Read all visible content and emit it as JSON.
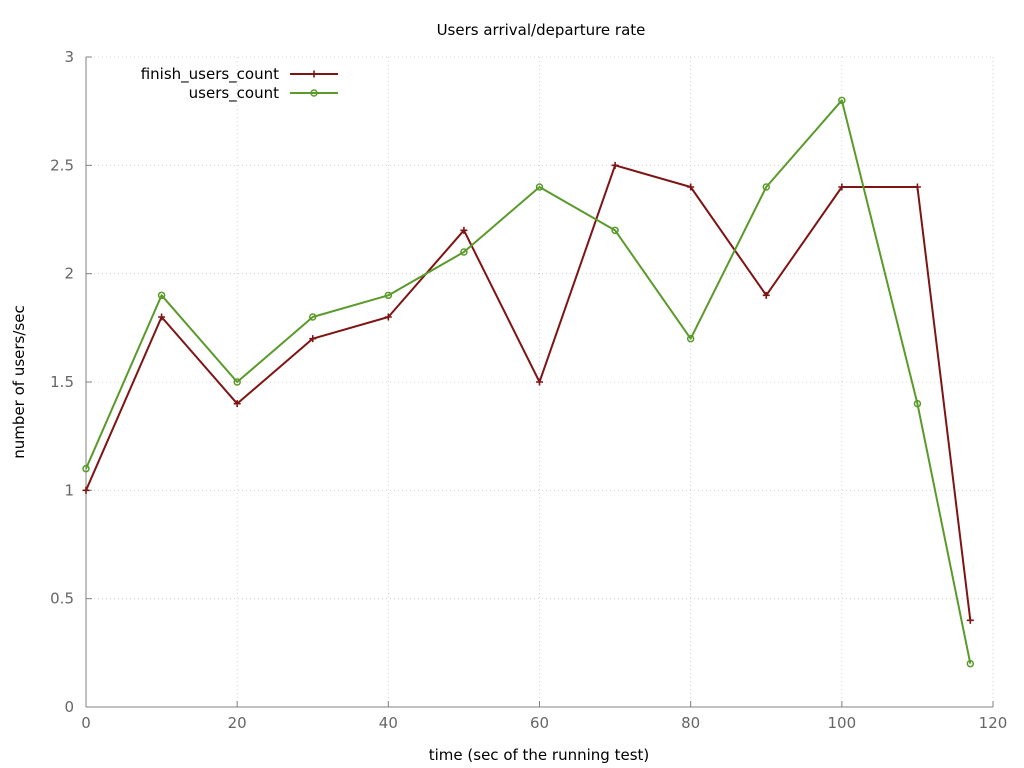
{
  "chart_data": {
    "type": "line",
    "title": "Users arrival/departure rate",
    "xlabel": "time (sec of the running test)",
    "ylabel": "number of users/sec",
    "xlim": [
      0,
      120
    ],
    "ylim": [
      0,
      3
    ],
    "xticks": [
      "0",
      "20",
      "40",
      "60",
      "80",
      "100",
      "120"
    ],
    "yticks": [
      "0",
      "0.5",
      "1",
      "1.5",
      "2",
      "2.5",
      "3"
    ],
    "grid": true,
    "legend_position": "top-left",
    "series": [
      {
        "name": "finish_users_count",
        "color": "#7f1414",
        "marker": "plus",
        "points": [
          [
            0,
            1.0
          ],
          [
            10,
            1.8
          ],
          [
            20,
            1.4
          ],
          [
            30,
            1.7
          ],
          [
            40,
            1.8
          ],
          [
            50,
            2.2
          ],
          [
            60,
            1.5
          ],
          [
            70,
            2.5
          ],
          [
            80,
            2.4
          ],
          [
            90,
            1.9
          ],
          [
            100,
            2.4
          ],
          [
            110,
            2.4
          ],
          [
            117,
            0.4
          ]
        ]
      },
      {
        "name": "users_count",
        "color": "#5a9a2a",
        "marker": "circle",
        "points": [
          [
            0,
            1.1
          ],
          [
            10,
            1.9
          ],
          [
            20,
            1.5
          ],
          [
            30,
            1.8
          ],
          [
            40,
            1.9
          ],
          [
            50,
            2.1
          ],
          [
            60,
            2.4
          ],
          [
            70,
            2.2
          ],
          [
            80,
            1.7
          ],
          [
            90,
            2.4
          ],
          [
            100,
            2.8
          ],
          [
            110,
            1.4
          ],
          [
            117,
            0.2
          ]
        ]
      }
    ]
  }
}
